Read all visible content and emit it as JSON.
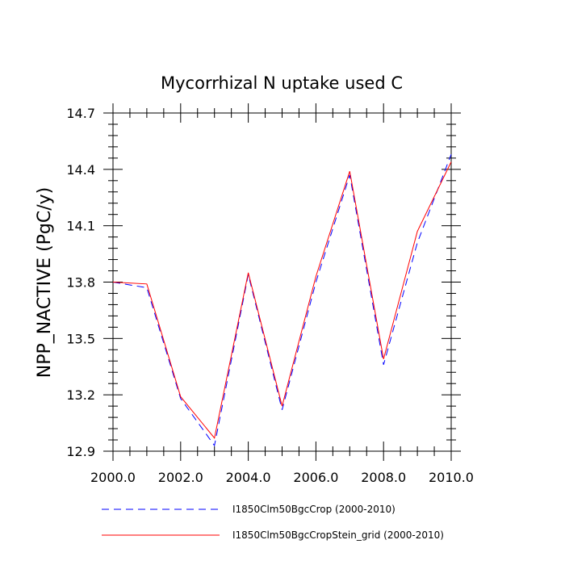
{
  "chart_data": {
    "type": "line",
    "title": "Mycorrhizal N uptake used C",
    "xlabel": "",
    "ylabel": "NPP_NACTIVE  (PgC/y)",
    "xlim": [
      2000,
      2010
    ],
    "ylim": [
      12.9,
      14.7
    ],
    "xticks": [
      2000,
      2002,
      2004,
      2006,
      2008,
      2010
    ],
    "xtick_labels": [
      "2000.0",
      "2002.0",
      "2004.0",
      "2006.0",
      "2008.0",
      "2010.0"
    ],
    "yticks": [
      12.9,
      13.2,
      13.5,
      13.8,
      14.1,
      14.4,
      14.7
    ],
    "ytick_labels": [
      "12.9",
      "13.2",
      "13.5",
      "13.8",
      "14.1",
      "14.4",
      "14.7"
    ],
    "grid": false,
    "legend_position": "bottom",
    "x": [
      2000,
      2001,
      2002,
      2003,
      2004,
      2005,
      2006,
      2007,
      2008,
      2009,
      2010
    ],
    "series": [
      {
        "name": "I1850Clm50BgcCrop (2000-2010)",
        "color": "#0000ff",
        "style": "dashed",
        "values": [
          13.8,
          13.77,
          13.18,
          12.93,
          13.84,
          13.12,
          13.8,
          14.37,
          13.36,
          14.01,
          14.48
        ]
      },
      {
        "name": "I1850Clm50BgcCropStein_grid (2000-2010)",
        "color": "#ff0000",
        "style": "solid",
        "values": [
          13.8,
          13.79,
          13.19,
          12.97,
          13.85,
          13.14,
          13.83,
          14.39,
          13.39,
          14.07,
          14.44
        ]
      }
    ]
  }
}
